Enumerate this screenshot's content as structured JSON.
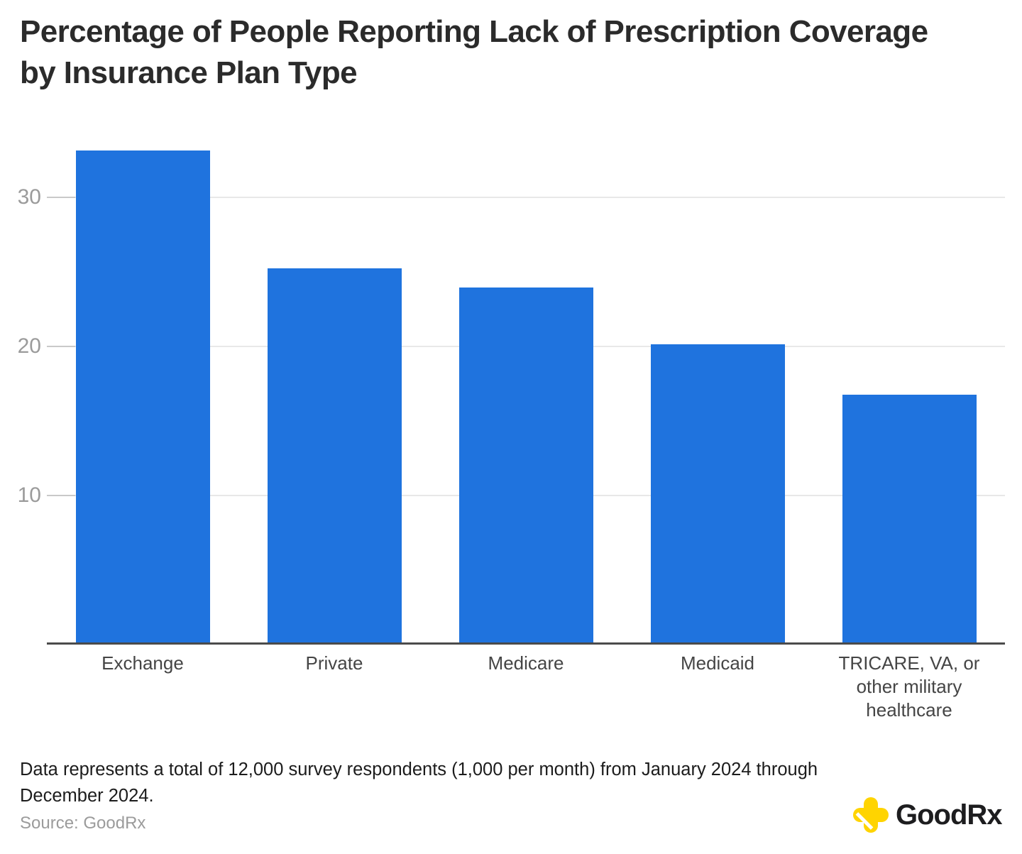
{
  "title": "Percentage of People Reporting Lack of Prescription Coverage by Insurance Plan Type",
  "footnote": "Data represents a total of 12,000 survey respondents (1,000 per month) from January 2024 through December 2024.",
  "source": "Source: GoodRx",
  "logo": {
    "text": "GoodRx",
    "plus_color": "#FFD400",
    "text_color": "#1d1d1f"
  },
  "colors": {
    "bar": "#1F73DE",
    "gridline": "#e8e8e8",
    "tick": "#c9c9c9",
    "axis_line": "#4b4b4b",
    "y_tick_label": "#9b9b9b",
    "x_label": "#454545",
    "title": "#2b2b2b",
    "note": "#1c1c1c",
    "source": "#9b9b9b"
  },
  "chart_data": {
    "type": "bar",
    "title": "Percentage of People Reporting Lack of Prescription Coverage by Insurance Plan Type",
    "categories": [
      "Exchange",
      "Private",
      "Medicare",
      "Medicaid",
      "TRICARE, VA, or other military healthcare"
    ],
    "values": [
      33.1,
      25.2,
      23.9,
      20.1,
      16.7
    ],
    "label_lines": [
      [
        "Exchange"
      ],
      [
        "Private"
      ],
      [
        "Medicare"
      ],
      [
        "Medicaid"
      ],
      [
        "TRICARE, VA, or",
        "other military",
        "healthcare"
      ]
    ],
    "xlabel": "",
    "ylabel": "",
    "yticks": [
      10,
      20,
      30
    ],
    "ylim": [
      0,
      35.1
    ],
    "grid": true,
    "legend": false,
    "bar_color": "#1F73DE",
    "unit": "percent"
  }
}
